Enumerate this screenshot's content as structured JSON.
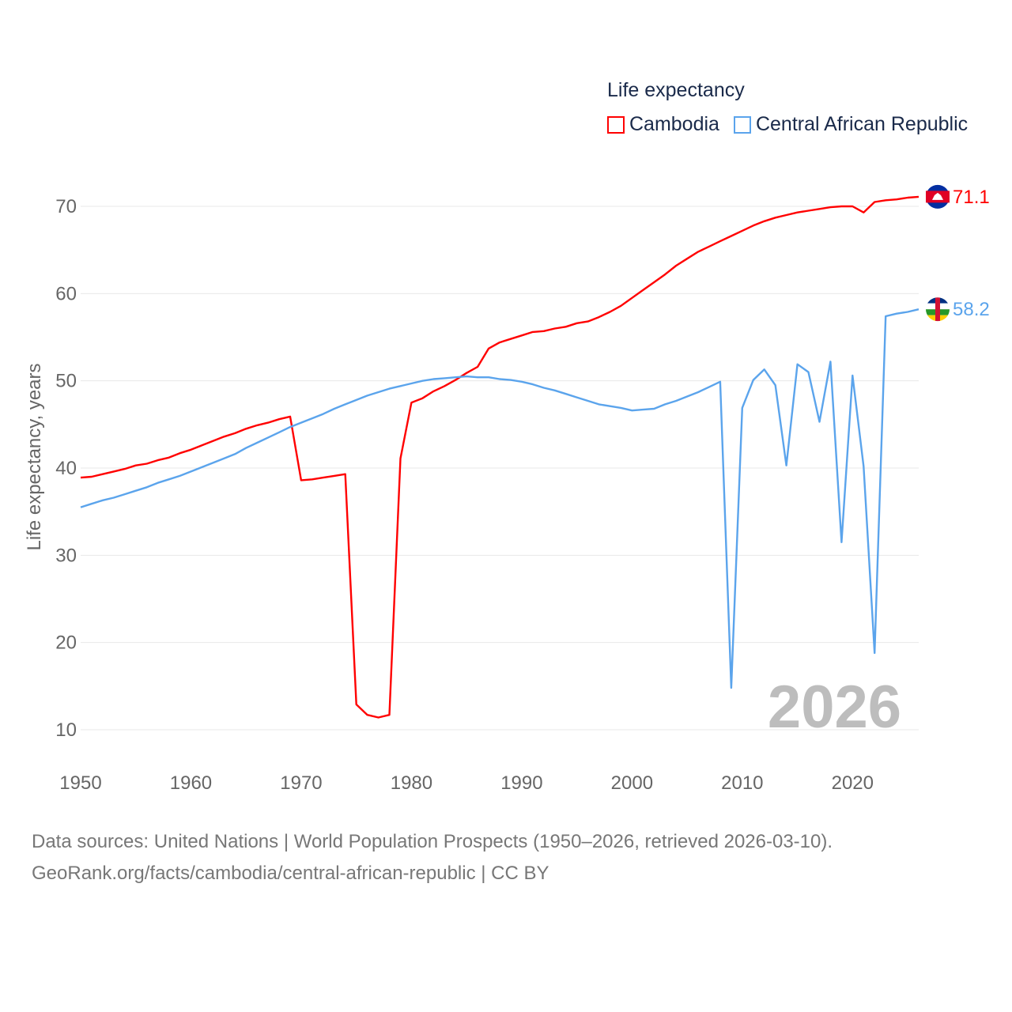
{
  "chart_data": {
    "type": "line",
    "legend_title": "Life expectancy",
    "ylabel": "Life expectancy, years",
    "xlabel": "",
    "xlim": [
      1950,
      2026
    ],
    "ylim": [
      5,
      75
    ],
    "yticks": [
      10,
      20,
      30,
      40,
      50,
      60,
      70
    ],
    "xticks": [
      1950,
      1960,
      1970,
      1980,
      1990,
      2000,
      2010,
      2020
    ],
    "grid": true,
    "legend_position": "top-right",
    "year_watermark": "2026",
    "x": [
      1950,
      1951,
      1952,
      1953,
      1954,
      1955,
      1956,
      1957,
      1958,
      1959,
      1960,
      1961,
      1962,
      1963,
      1964,
      1965,
      1966,
      1967,
      1968,
      1969,
      1970,
      1971,
      1972,
      1973,
      1974,
      1975,
      1976,
      1977,
      1978,
      1979,
      1980,
      1981,
      1982,
      1983,
      1984,
      1985,
      1986,
      1987,
      1988,
      1989,
      1990,
      1991,
      1992,
      1993,
      1994,
      1995,
      1996,
      1997,
      1998,
      1999,
      2000,
      2001,
      2002,
      2003,
      2004,
      2005,
      2006,
      2007,
      2008,
      2009,
      2010,
      2011,
      2012,
      2013,
      2014,
      2015,
      2016,
      2017,
      2018,
      2019,
      2020,
      2021,
      2022,
      2023,
      2024,
      2025,
      2026
    ],
    "series": [
      {
        "name": "Cambodia",
        "color": "#ff0000",
        "end_label": "71.1",
        "values": [
          38.9,
          39.0,
          39.3,
          39.6,
          39.9,
          40.3,
          40.5,
          40.9,
          41.2,
          41.7,
          42.1,
          42.6,
          43.1,
          43.6,
          44.0,
          44.5,
          44.9,
          45.2,
          45.6,
          45.9,
          38.6,
          38.7,
          38.9,
          39.1,
          39.3,
          12.9,
          11.7,
          11.4,
          11.7,
          41.1,
          47.5,
          48.0,
          48.8,
          49.4,
          50.1,
          50.9,
          51.6,
          53.7,
          54.4,
          54.8,
          55.2,
          55.6,
          55.7,
          56.0,
          56.2,
          56.6,
          56.8,
          57.3,
          57.9,
          58.6,
          59.5,
          60.4,
          61.3,
          62.2,
          63.2,
          64.0,
          64.8,
          65.4,
          66.0,
          66.6,
          67.2,
          67.8,
          68.3,
          68.7,
          69.0,
          69.3,
          69.5,
          69.7,
          69.9,
          70.0,
          70.0,
          69.3,
          70.5,
          70.7,
          70.8,
          71.0,
          71.1
        ]
      },
      {
        "name": "Central African Republic",
        "color": "#5ba4ec",
        "end_label": "58.2",
        "values": [
          35.5,
          35.9,
          36.3,
          36.6,
          37.0,
          37.4,
          37.8,
          38.3,
          38.7,
          39.1,
          39.6,
          40.1,
          40.6,
          41.1,
          41.6,
          42.3,
          42.9,
          43.5,
          44.1,
          44.7,
          45.2,
          45.7,
          46.2,
          46.8,
          47.3,
          47.8,
          48.3,
          48.7,
          49.1,
          49.4,
          49.7,
          50.0,
          50.2,
          50.3,
          50.4,
          50.5,
          50.4,
          50.4,
          50.2,
          50.1,
          49.9,
          49.6,
          49.2,
          48.9,
          48.5,
          48.1,
          47.7,
          47.3,
          47.1,
          46.9,
          46.6,
          46.7,
          46.8,
          47.3,
          47.7,
          48.2,
          48.7,
          49.3,
          49.9,
          14.8,
          46.9,
          50.1,
          51.3,
          49.5,
          40.3,
          51.9,
          51.0,
          45.3,
          52.2,
          31.5,
          50.6,
          40.2,
          18.8,
          57.4,
          57.7,
          57.9,
          58.2
        ]
      }
    ]
  },
  "source": {
    "line1": "Data sources: United Nations | World Population Prospects (1950–2026, retrieved 2026-03-10).",
    "line2": "GeoRank.org/facts/cambodia/central-african-republic | CC BY"
  }
}
